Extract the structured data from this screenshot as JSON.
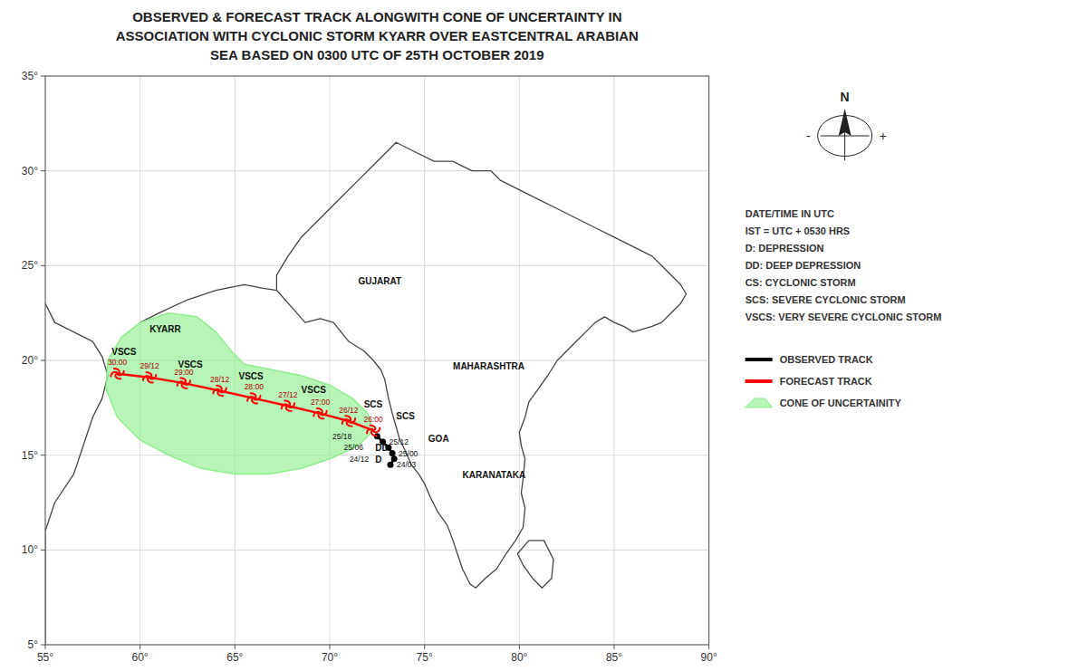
{
  "chart_data": {
    "type": "map",
    "title": [
      "OBSERVED & FORECAST TRACK ALONGWITH CONE OF UNCERTAINTY IN",
      "ASSOCIATION WITH CYCLONIC STORM KYARR OVER EASTCENTRAL ARABIAN",
      "SEA BASED ON 0300 UTC OF 25TH OCTOBER 2019"
    ],
    "xlim": [
      55,
      90
    ],
    "ylim": [
      5,
      35
    ],
    "xticks": [
      {
        "value": 55,
        "label": "55°"
      },
      {
        "value": 60,
        "label": "60°"
      },
      {
        "value": 65,
        "label": "65°"
      },
      {
        "value": 70,
        "label": "70°"
      },
      {
        "value": 75,
        "label": "75°"
      },
      {
        "value": 80,
        "label": "80°"
      },
      {
        "value": 85,
        "label": "85°"
      },
      {
        "value": 90,
        "label": "90°"
      }
    ],
    "yticks": [
      {
        "value": 5,
        "label": "5°"
      },
      {
        "value": 10,
        "label": "10°"
      },
      {
        "value": 15,
        "label": "15°"
      },
      {
        "value": 20,
        "label": "20°"
      },
      {
        "value": 25,
        "label": "25°"
      },
      {
        "value": 30,
        "label": "30°"
      },
      {
        "value": 35,
        "label": "35°"
      }
    ],
    "grid": true,
    "legend": "right",
    "series": [
      {
        "name": "OBSERVED TRACK",
        "type": "line",
        "color": "#000000",
        "marker": "circle",
        "x": [
          73.2,
          73.4,
          73.3,
          73.1,
          72.8,
          72.5
        ],
        "values": [
          14.5,
          14.8,
          15.1,
          15.4,
          15.7,
          16.0
        ],
        "labels": [
          "24/03",
          "24/12",
          "25/00",
          "25/06",
          "25/12",
          "25/18"
        ]
      },
      {
        "name": "FORECAST TRACK",
        "type": "line",
        "color": "#ff0000",
        "marker": "cyclone",
        "x": [
          72.3,
          71.0,
          69.5,
          67.8,
          66.0,
          64.2,
          62.3,
          60.5,
          58.8
        ],
        "values": [
          16.3,
          16.8,
          17.2,
          17.6,
          18.0,
          18.4,
          18.8,
          19.1,
          19.3
        ],
        "labels": [
          "26:00",
          "26/12",
          "27:00",
          "27/12",
          "28:00",
          "28/12",
          "29:00",
          "29/12",
          "30:00"
        ]
      },
      {
        "name": "CONE OF UNCERTAINITY",
        "type": "area",
        "color": "#90ee90",
        "x": [
          72.3,
          71.5,
          70.0,
          68.5,
          66.8,
          65.0,
          63.2,
          61.5,
          60.0,
          58.8,
          58.2,
          58.3,
          59.0,
          60.0,
          61.5,
          63.0,
          64.0,
          64.8,
          65.5,
          67.0,
          68.5,
          70.0,
          71.2,
          72.0,
          72.3
        ],
        "values": [
          16.3,
          15.5,
          14.8,
          14.3,
          14.0,
          14.0,
          14.3,
          15.0,
          15.8,
          17.0,
          18.5,
          20.0,
          21.2,
          22.0,
          22.5,
          22.3,
          21.5,
          20.5,
          19.8,
          19.5,
          19.2,
          18.7,
          18.0,
          17.2,
          16.3
        ]
      }
    ],
    "outlines": [
      {
        "x": [
          67.2,
          68.0,
          68.7,
          69.5,
          70.2,
          71.0,
          71.8,
          72.3,
          72.7,
          72.9,
          73.1,
          73.3,
          73.5,
          73.7,
          74.0,
          74.3,
          74.7,
          75.0,
          75.3,
          75.7,
          76.2,
          76.5,
          77.0,
          77.4,
          77.7,
          78.2,
          78.8,
          79.3,
          79.8,
          80.2,
          80.3,
          80.1,
          80.2,
          80.3,
          80.1,
          80.0,
          80.3,
          80.5,
          81.0,
          81.5,
          82.0,
          82.5,
          83.0,
          83.5,
          84.0,
          84.5,
          85.0,
          85.5,
          86.0,
          87.0,
          87.5,
          88.0,
          88.5,
          88.8,
          88.5,
          88.0,
          87.5,
          87.0,
          86.0,
          85.0,
          84.0,
          83.0,
          82.0,
          81.0,
          80.0,
          79.0,
          78.5,
          77.5,
          76.5,
          75.5,
          74.5,
          73.5,
          73.0,
          72.5,
          71.5,
          70.5,
          69.5,
          68.5,
          67.8,
          67.2,
          67.2
        ],
        "values": [
          23.7,
          22.8,
          22.0,
          22.2,
          22.0,
          21.0,
          20.5,
          20.0,
          19.5,
          19.0,
          18.0,
          17.2,
          16.5,
          15.8,
          15.2,
          14.5,
          14.0,
          13.5,
          12.8,
          12.0,
          11.3,
          10.5,
          9.0,
          8.2,
          8.0,
          8.5,
          9.0,
          9.8,
          10.5,
          11.2,
          12.2,
          13.0,
          13.8,
          14.8,
          15.5,
          16.2,
          17.0,
          17.8,
          18.5,
          19.2,
          20.0,
          20.5,
          21.0,
          21.5,
          22.0,
          22.3,
          22.0,
          21.8,
          21.5,
          21.8,
          22.0,
          22.5,
          23.0,
          23.5,
          24.0,
          24.5,
          25.0,
          25.5,
          26.0,
          26.5,
          27.0,
          27.5,
          28.0,
          28.5,
          29.0,
          29.5,
          30.0,
          30.0,
          30.5,
          30.5,
          31.0,
          31.5,
          31.0,
          30.5,
          29.5,
          28.5,
          27.5,
          26.5,
          25.5,
          24.5,
          23.7
        ]
      },
      {
        "x": [
          79.9,
          80.2,
          80.7,
          81.2,
          81.7,
          81.8,
          81.3,
          80.5,
          79.9
        ],
        "values": [
          9.8,
          9.2,
          8.5,
          8.0,
          8.5,
          9.5,
          10.5,
          10.5,
          9.8
        ]
      },
      {
        "x": [
          60.0,
          61.0,
          62.5,
          64.0,
          65.5,
          66.5,
          67.2
        ],
        "values": [
          22.0,
          22.5,
          23.2,
          23.7,
          24.0,
          23.8,
          23.7
        ]
      },
      {
        "x": [
          55.0,
          55.5,
          56.5,
          57.5,
          58.0,
          58.3,
          58.0,
          57.5,
          57.0,
          56.5,
          55.5,
          55.0
        ],
        "values": [
          23.0,
          22.0,
          21.5,
          21.0,
          20.2,
          19.2,
          18.0,
          17.0,
          15.5,
          14.0,
          12.5,
          11.0
        ]
      },
      {
        "x": [
          55.0,
          55.0,
          55.0,
          55.0
        ],
        "values": [
          11.0,
          9.0,
          7.0,
          5.0
        ]
      }
    ],
    "annotations": [
      {
        "text": "D",
        "x": 72.4,
        "y": 14.6
      },
      {
        "text": "DD",
        "x": 72.4,
        "y": 15.2
      },
      {
        "text": "VSCS",
        "x": 58.5,
        "y": 20.3
      },
      {
        "text": "VSCS",
        "x": 62.0,
        "y": 19.6
      },
      {
        "text": "VSCS",
        "x": 65.2,
        "y": 19.0
      },
      {
        "text": "VSCS",
        "x": 68.5,
        "y": 18.3
      },
      {
        "text": "SCS",
        "x": 71.8,
        "y": 17.5
      },
      {
        "text": "SCS",
        "x": 73.5,
        "y": 16.9
      },
      {
        "text": "KYARR",
        "x": 60.5,
        "y": 21.5
      },
      {
        "text": "GUJARAT",
        "x": 71.5,
        "y": 24.0
      },
      {
        "text": "MAHARASHTRA",
        "x": 76.5,
        "y": 19.5
      },
      {
        "text": "GOA",
        "x": 75.2,
        "y": 15.7
      },
      {
        "text": "KARANATAKA",
        "x": 77.0,
        "y": 13.8
      }
    ],
    "notes": [
      "DATE/TIME IN UTC",
      "IST = UTC + 0530 HRS",
      "D: DEPRESSION",
      "DD: DEEP DEPRESSION",
      "CS: CYCLONIC STORM",
      "SCS: SEVERE CYCLONIC STORM",
      "VSCS: VERY SEVERE CYCLONIC STORM"
    ],
    "compass_labels": [
      "N",
      "+",
      "-"
    ]
  }
}
